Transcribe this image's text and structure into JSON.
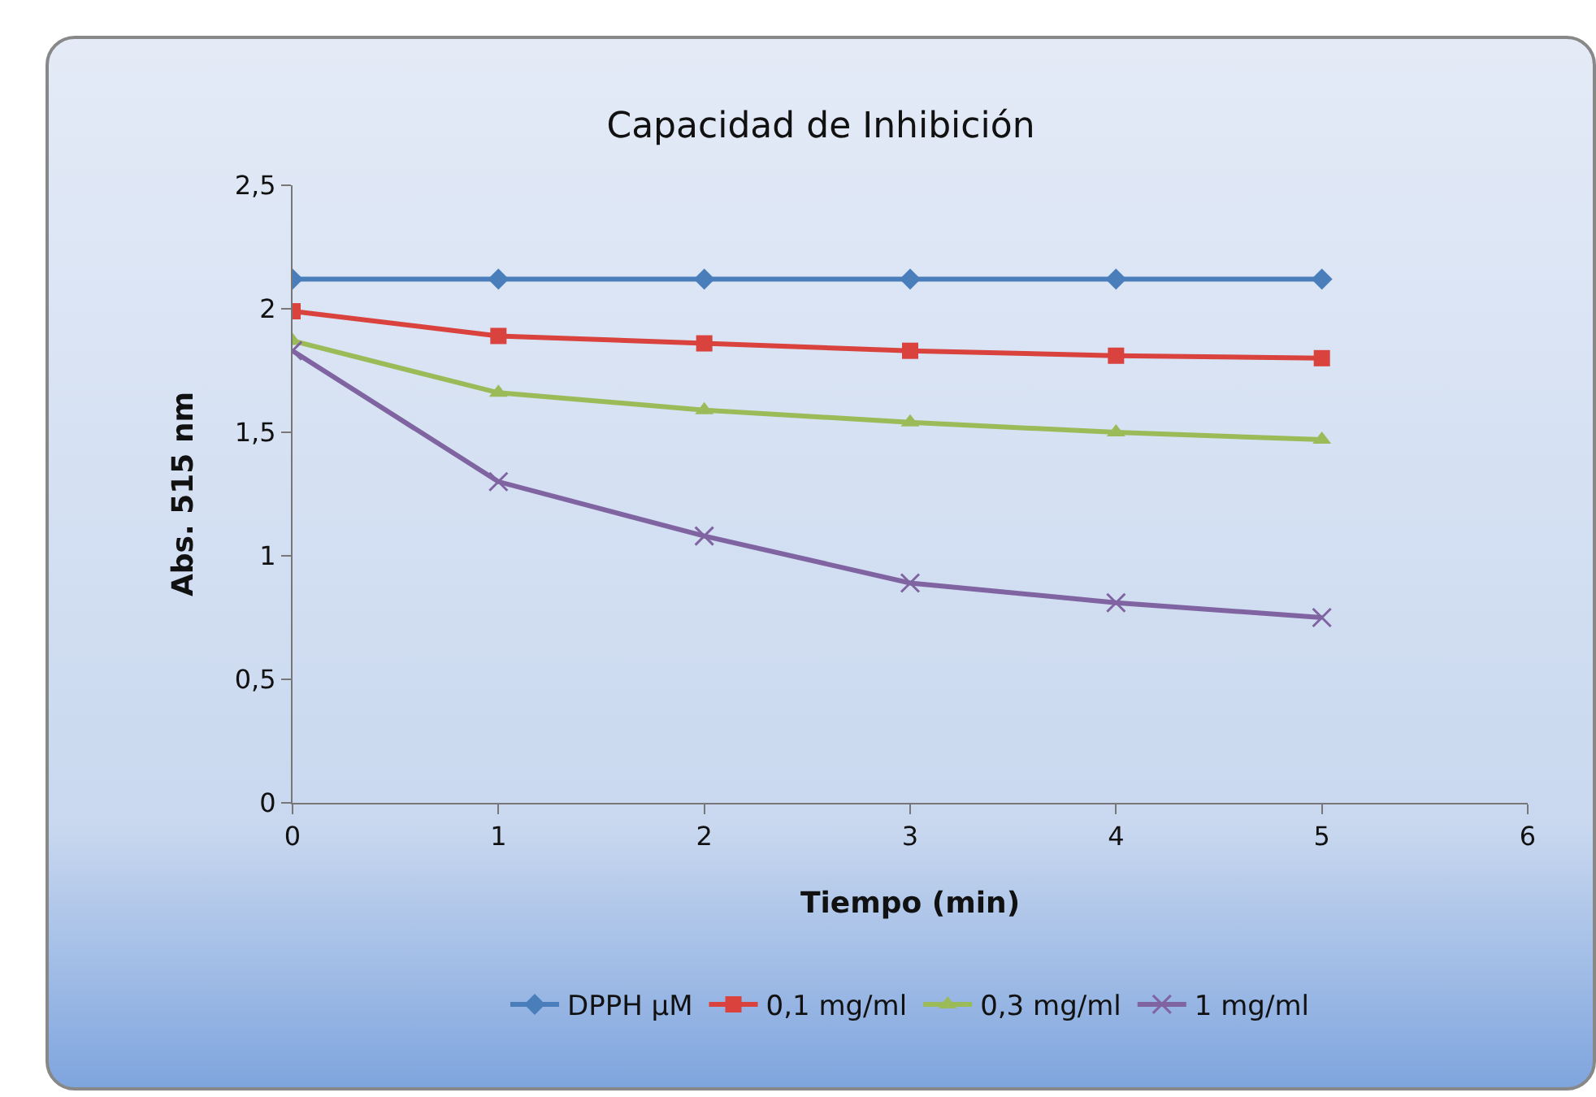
{
  "chart_data": {
    "type": "line",
    "title": "Capacidad de Inhibición",
    "xlabel": "Tiempo (min)",
    "ylabel": "Abs. 515 nm",
    "x": [
      0,
      1,
      2,
      3,
      4,
      5
    ],
    "series": [
      {
        "name": "DPPH µM",
        "color": "#4a7ebb",
        "marker": "diamond",
        "values": [
          2.12,
          2.12,
          2.12,
          2.12,
          2.12,
          2.12
        ]
      },
      {
        "name": "0,1 mg/ml",
        "color": "#d9423d",
        "marker": "square",
        "values": [
          1.99,
          1.89,
          1.86,
          1.83,
          1.81,
          1.8
        ]
      },
      {
        "name": "0,3 mg/ml",
        "color": "#9bbb59",
        "marker": "triangle",
        "values": [
          1.87,
          1.66,
          1.59,
          1.54,
          1.5,
          1.47
        ]
      },
      {
        "name": "1 mg/ml",
        "color": "#8064a2",
        "marker": "cross",
        "values": [
          1.83,
          1.3,
          1.08,
          0.89,
          0.81,
          0.75
        ]
      }
    ],
    "xlim": [
      0,
      6
    ],
    "xticks": [
      0,
      1,
      2,
      3,
      4,
      5,
      6
    ],
    "ylim": [
      0,
      2.5
    ],
    "yticks": [
      {
        "value": 0,
        "label": "0"
      },
      {
        "value": 0.5,
        "label": "0,5"
      },
      {
        "value": 1,
        "label": "1"
      },
      {
        "value": 1.5,
        "label": "1,5"
      },
      {
        "value": 2,
        "label": "2"
      },
      {
        "value": 2.5,
        "label": "2,5"
      }
    ],
    "grid": false,
    "legend": "bottom"
  }
}
